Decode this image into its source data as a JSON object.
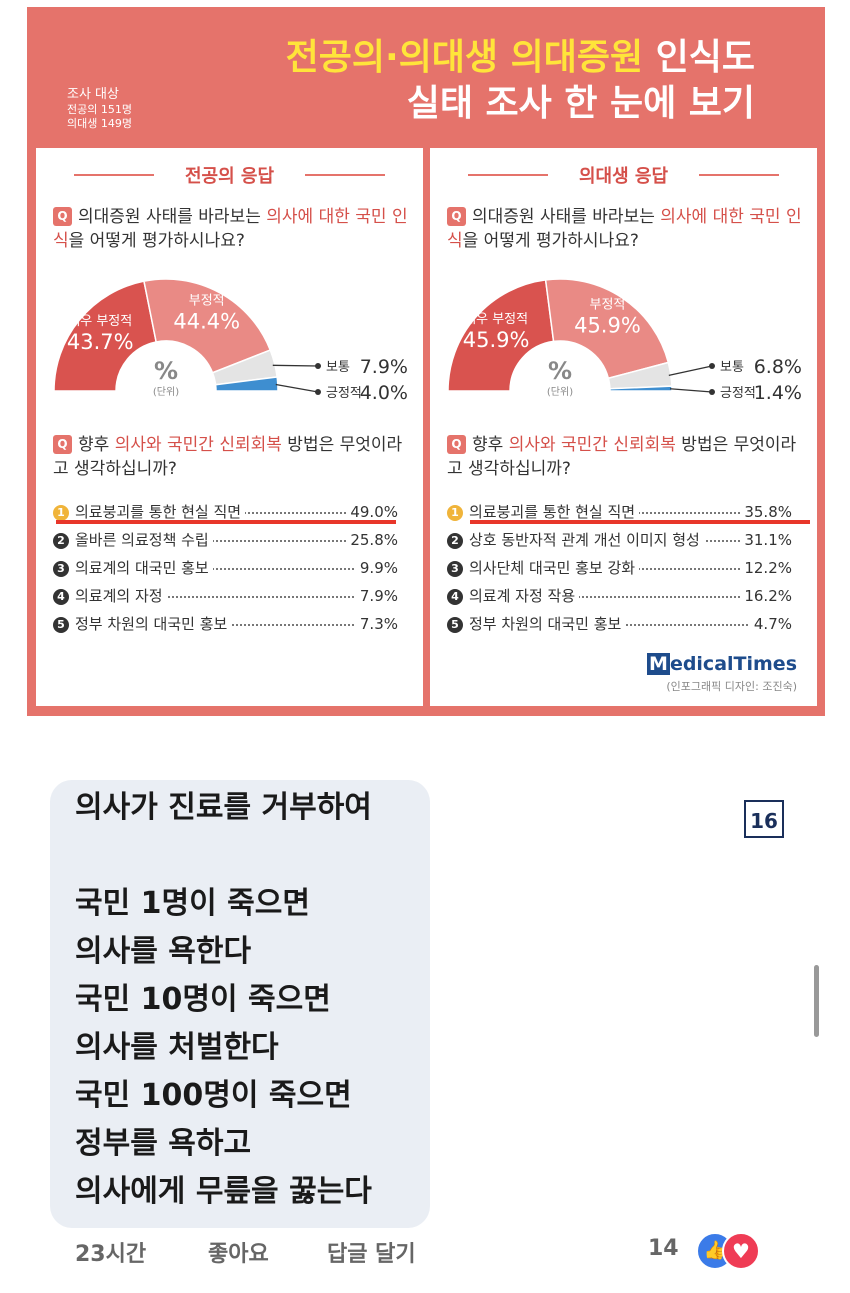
{
  "infographic": {
    "survey_label": "조사 대상",
    "survey_line1": "전공의 151명",
    "survey_line2": "의대생 149명",
    "title_yellow": "전공의·의대생 의대증원",
    "title_white1": "인식도",
    "title_white2": "실태 조사 한 눈에 보기",
    "unit_symbol": "%",
    "unit_label": "(단위)",
    "panels": [
      {
        "heading": "전공의 응답",
        "q1_badge": "Q",
        "q1_a": "의대증원 사태를 바라보는 ",
        "q1_red": "의사에 대한 국민 인식",
        "q1_b": "을 어떻게 평가하시나요?",
        "pie": [
          {
            "label": "매우 부정적",
            "value": "43.7%",
            "fraction": 0.437,
            "color": "#d9534f"
          },
          {
            "label": "부정적",
            "value": "44.4%",
            "fraction": 0.444,
            "color": "#e98a85"
          },
          {
            "label": "보통",
            "value": "7.9%",
            "fraction": 0.079,
            "color": "#e4e4e4"
          },
          {
            "label": "긍정적",
            "value": "4.0%",
            "fraction": 0.04,
            "color": "#3e8ed0"
          }
        ],
        "q2_badge": "Q",
        "q2_a": "향후 ",
        "q2_red": "의사와 국민간 신뢰회복",
        "q2_b": " 방법은 무엇이라고 생각하십니까?",
        "items": [
          {
            "n": "1",
            "label": "의료붕괴를 통한 현실 직면",
            "value": "49.0%"
          },
          {
            "n": "2",
            "label": "올바른 의료정책 수립",
            "value": "25.8%"
          },
          {
            "n": "3",
            "label": "의료계의 대국민 홍보",
            "value": "9.9%"
          },
          {
            "n": "4",
            "label": "의료계의 자정",
            "value": "7.9%"
          },
          {
            "n": "5",
            "label": "정부 차원의 대국민 홍보",
            "value": "7.3%"
          }
        ]
      },
      {
        "heading": "의대생 응답",
        "q1_badge": "Q",
        "q1_a": "의대증원 사태를 바라보는 ",
        "q1_red": "의사에 대한 국민 인식",
        "q1_b": "을 어떻게 평가하시나요?",
        "pie": [
          {
            "label": "매우 부정적",
            "value": "45.9%",
            "fraction": 0.459,
            "color": "#d9534f"
          },
          {
            "label": "부정적",
            "value": "45.9%",
            "fraction": 0.459,
            "color": "#e98a85"
          },
          {
            "label": "보통",
            "value": "6.8%",
            "fraction": 0.068,
            "color": "#e4e4e4"
          },
          {
            "label": "긍정적",
            "value": "1.4%",
            "fraction": 0.014,
            "color": "#3e8ed0"
          }
        ],
        "q2_badge": "Q",
        "q2_a": "향후 ",
        "q2_red": "의사와 국민간 신뢰회복",
        "q2_b": " 방법은 무엇이라고 생각하십니까?",
        "items": [
          {
            "n": "1",
            "label": "의료붕괴를 통한 현실 직면",
            "value": "35.8%"
          },
          {
            "n": "2",
            "label": "상호 동반자적 관계 개선 이미지 형성",
            "value": "31.1%"
          },
          {
            "n": "3",
            "label": "의사단체 대국민 홍보 강화",
            "value": "12.2%"
          },
          {
            "n": "4",
            "label": "의료계 자정 작용",
            "value": "16.2%"
          },
          {
            "n": "5",
            "label": "정부 차원의 대국민 홍보",
            "value": "4.7%"
          }
        ]
      }
    ],
    "brand_m": "M",
    "brand_rest": "edicalTimes",
    "credit": "(인포그래픽 디자인: 조진숙)"
  },
  "comment": {
    "text": "의사가 진료를 거부하여\n\n국민 1명이 죽으면\n의사를 욕한다\n국민 10명이 죽으면\n의사를 처벌한다\n국민 100명이 죽으면\n정부를 욕하고\n의사에게 무릎을 꿇는다",
    "time": "23시간",
    "like_action": "좋아요",
    "reply_action": "답글 달기",
    "reaction_count": "14",
    "like_icon": "thumbs-up-icon",
    "love_icon": "heart-icon"
  },
  "badge_number": "16"
}
